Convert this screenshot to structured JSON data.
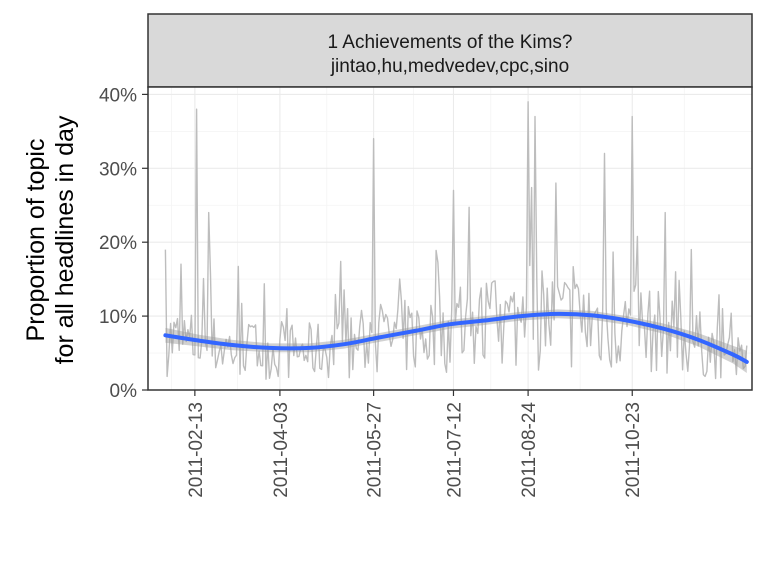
{
  "chart_data": {
    "type": "line",
    "title": "",
    "facet": {
      "title": "1 Achievements of the Kims?",
      "subtitle": "jintao,hu,medvedev,cpc,sino"
    },
    "xlabel": "",
    "ylabel": "Proportion of topic",
    "ylabel_line2": "for all headlines in day",
    "x_type": "date",
    "xlim": [
      "2011-01-17",
      "2011-12-31"
    ],
    "ylim": [
      0,
      0.41
    ],
    "x_ticks": [
      "2011-02-13",
      "2011-04-03",
      "2011-05-27",
      "2011-07-12",
      "2011-08-24",
      "2011-10-23"
    ],
    "y_ticks": [
      0,
      0.1,
      0.2,
      0.3,
      0.4
    ],
    "y_tick_labels": [
      "0%",
      "10%",
      "20%",
      "30%",
      "40%"
    ],
    "grid": true,
    "legend": "none",
    "series": [
      {
        "role": "daily-proportion",
        "color": "#bdbdbd",
        "spikes": [
          [
            "2011-01-27",
            0.19
          ],
          [
            "2011-02-14",
            0.38
          ],
          [
            "2011-02-21",
            0.24
          ],
          [
            "2011-04-07",
            0.11
          ],
          [
            "2011-05-12",
            0.11
          ],
          [
            "2011-05-27",
            0.34
          ],
          [
            "2011-06-11",
            0.15
          ],
          [
            "2011-07-12",
            0.27
          ],
          [
            "2011-08-01",
            0.12
          ],
          [
            "2011-08-24",
            0.39
          ],
          [
            "2011-08-28",
            0.37
          ],
          [
            "2011-09-09",
            0.28
          ],
          [
            "2011-10-07",
            0.32
          ],
          [
            "2011-10-23",
            0.37
          ],
          [
            "2011-11-11",
            0.24
          ],
          [
            "2011-11-17",
            0.16
          ],
          [
            "2011-11-26",
            0.19
          ],
          [
            "2011-12-14",
            0.11
          ]
        ]
      },
      {
        "role": "smoothed-trend",
        "color": "#3366ff",
        "band_color": "#999999",
        "points": [
          [
            "2011-01-27",
            0.074
          ],
          [
            "2011-02-15",
            0.067
          ],
          [
            "2011-03-06",
            0.061
          ],
          [
            "2011-03-28",
            0.057
          ],
          [
            "2011-04-20",
            0.057
          ],
          [
            "2011-05-10",
            0.062
          ],
          [
            "2011-05-30",
            0.071
          ],
          [
            "2011-06-20",
            0.08
          ],
          [
            "2011-07-10",
            0.089
          ],
          [
            "2011-07-30",
            0.094
          ],
          [
            "2011-08-20",
            0.1
          ],
          [
            "2011-09-10",
            0.103
          ],
          [
            "2011-09-30",
            0.101
          ],
          [
            "2011-10-20",
            0.094
          ],
          [
            "2011-11-10",
            0.083
          ],
          [
            "2011-11-30",
            0.068
          ],
          [
            "2011-12-20",
            0.048
          ],
          [
            "2011-12-28",
            0.038
          ]
        ],
        "band_halfwidth": [
          0.01,
          0.008,
          0.007,
          0.006,
          0.006,
          0.006,
          0.006,
          0.006,
          0.006,
          0.006,
          0.006,
          0.006,
          0.006,
          0.006,
          0.007,
          0.009,
          0.012,
          0.015
        ]
      }
    ]
  }
}
